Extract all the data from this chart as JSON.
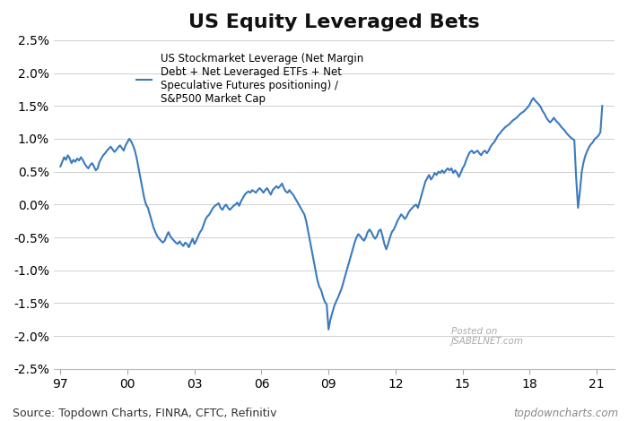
{
  "title": "US Equity Leveraged Bets",
  "legend_label": "US Stockmarket Leverage (Net Margin\nDebt + Net Leveraged ETFs + Net\nSpeculative Futures positioning) /\nS&P500 Market Cap",
  "line_color": "#3a7abf",
  "line_width": 1.5,
  "ylim": [
    -0.025,
    0.025
  ],
  "yticks": [
    -0.025,
    -0.02,
    -0.015,
    -0.01,
    -0.005,
    0.0,
    0.005,
    0.01,
    0.015,
    0.02,
    0.025
  ],
  "xtick_positions": [
    1997,
    2000,
    2003,
    2006,
    2009,
    2012,
    2015,
    2018,
    2021
  ],
  "xtick_labels": [
    "97",
    "00",
    "03",
    "06",
    "09",
    "12",
    "15",
    "18",
    "21"
  ],
  "source_text": "Source: Topdown Charts, FINRA, CFTC, Refinitiv",
  "watermark_text": "topdowncharts.com",
  "posted_on_text": "Posted on\nJSABELNET.com",
  "background_color": "#ffffff",
  "grid_color": "#d0d0d0",
  "title_fontsize": 16,
  "tick_fontsize": 10,
  "source_fontsize": 9,
  "xlim": [
    1996.7,
    2021.8
  ],
  "series": {
    "dates": [
      1997.0,
      1997.083,
      1997.167,
      1997.25,
      1997.333,
      1997.417,
      1997.5,
      1997.583,
      1997.667,
      1997.75,
      1997.833,
      1997.917,
      1998.0,
      1998.083,
      1998.167,
      1998.25,
      1998.333,
      1998.417,
      1998.5,
      1998.583,
      1998.667,
      1998.75,
      1998.833,
      1998.917,
      1999.0,
      1999.083,
      1999.167,
      1999.25,
      1999.333,
      1999.417,
      1999.5,
      1999.583,
      1999.667,
      1999.75,
      1999.833,
      1999.917,
      2000.0,
      2000.083,
      2000.167,
      2000.25,
      2000.333,
      2000.417,
      2000.5,
      2000.583,
      2000.667,
      2000.75,
      2000.833,
      2000.917,
      2001.0,
      2001.083,
      2001.167,
      2001.25,
      2001.333,
      2001.417,
      2001.5,
      2001.583,
      2001.667,
      2001.75,
      2001.833,
      2001.917,
      2002.0,
      2002.083,
      2002.167,
      2002.25,
      2002.333,
      2002.417,
      2002.5,
      2002.583,
      2002.667,
      2002.75,
      2002.833,
      2002.917,
      2003.0,
      2003.083,
      2003.167,
      2003.25,
      2003.333,
      2003.417,
      2003.5,
      2003.583,
      2003.667,
      2003.75,
      2003.833,
      2003.917,
      2004.0,
      2004.083,
      2004.167,
      2004.25,
      2004.333,
      2004.417,
      2004.5,
      2004.583,
      2004.667,
      2004.75,
      2004.833,
      2004.917,
      2005.0,
      2005.083,
      2005.167,
      2005.25,
      2005.333,
      2005.417,
      2005.5,
      2005.583,
      2005.667,
      2005.75,
      2005.833,
      2005.917,
      2006.0,
      2006.083,
      2006.167,
      2006.25,
      2006.333,
      2006.417,
      2006.5,
      2006.583,
      2006.667,
      2006.75,
      2006.833,
      2006.917,
      2007.0,
      2007.083,
      2007.167,
      2007.25,
      2007.333,
      2007.417,
      2007.5,
      2007.583,
      2007.667,
      2007.75,
      2007.833,
      2007.917,
      2008.0,
      2008.083,
      2008.167,
      2008.25,
      2008.333,
      2008.417,
      2008.5,
      2008.583,
      2008.667,
      2008.75,
      2008.833,
      2008.917,
      2009.0,
      2009.083,
      2009.167,
      2009.25,
      2009.333,
      2009.417,
      2009.5,
      2009.583,
      2009.667,
      2009.75,
      2009.833,
      2009.917,
      2010.0,
      2010.083,
      2010.167,
      2010.25,
      2010.333,
      2010.417,
      2010.5,
      2010.583,
      2010.667,
      2010.75,
      2010.833,
      2010.917,
      2011.0,
      2011.083,
      2011.167,
      2011.25,
      2011.333,
      2011.417,
      2011.5,
      2011.583,
      2011.667,
      2011.75,
      2011.833,
      2011.917,
      2012.0,
      2012.083,
      2012.167,
      2012.25,
      2012.333,
      2012.417,
      2012.5,
      2012.583,
      2012.667,
      2012.75,
      2012.833,
      2012.917,
      2013.0,
      2013.083,
      2013.167,
      2013.25,
      2013.333,
      2013.417,
      2013.5,
      2013.583,
      2013.667,
      2013.75,
      2013.833,
      2013.917,
      2014.0,
      2014.083,
      2014.167,
      2014.25,
      2014.333,
      2014.417,
      2014.5,
      2014.583,
      2014.667,
      2014.75,
      2014.833,
      2014.917,
      2015.0,
      2015.083,
      2015.167,
      2015.25,
      2015.333,
      2015.417,
      2015.5,
      2015.583,
      2015.667,
      2015.75,
      2015.833,
      2015.917,
      2016.0,
      2016.083,
      2016.167,
      2016.25,
      2016.333,
      2016.417,
      2016.5,
      2016.583,
      2016.667,
      2016.75,
      2016.833,
      2016.917,
      2017.0,
      2017.083,
      2017.167,
      2017.25,
      2017.333,
      2017.417,
      2017.5,
      2017.583,
      2017.667,
      2017.75,
      2017.833,
      2017.917,
      2018.0,
      2018.083,
      2018.167,
      2018.25,
      2018.333,
      2018.417,
      2018.5,
      2018.583,
      2018.667,
      2018.75,
      2018.833,
      2018.917,
      2019.0,
      2019.083,
      2019.167,
      2019.25,
      2019.333,
      2019.417,
      2019.5,
      2019.583,
      2019.667,
      2019.75,
      2019.833,
      2019.917,
      2020.0,
      2020.083,
      2020.167,
      2020.25,
      2020.333,
      2020.417,
      2020.5,
      2020.583,
      2020.667,
      2020.75,
      2020.833,
      2020.917,
      2021.0,
      2021.083,
      2021.167,
      2021.25
    ],
    "values": [
      0.0058,
      0.0065,
      0.0072,
      0.0068,
      0.0075,
      0.007,
      0.0063,
      0.0068,
      0.0065,
      0.007,
      0.0067,
      0.0072,
      0.0068,
      0.0062,
      0.0058,
      0.0055,
      0.006,
      0.0063,
      0.0058,
      0.0052,
      0.0055,
      0.0065,
      0.007,
      0.0075,
      0.0078,
      0.0082,
      0.0085,
      0.0088,
      0.0084,
      0.008,
      0.0083,
      0.0087,
      0.009,
      0.0086,
      0.0082,
      0.009,
      0.0095,
      0.01,
      0.0096,
      0.009,
      0.0082,
      0.007,
      0.0055,
      0.004,
      0.0025,
      0.001,
      0.0,
      -0.0005,
      -0.0015,
      -0.0025,
      -0.0035,
      -0.0042,
      -0.0048,
      -0.0052,
      -0.0055,
      -0.0058,
      -0.0055,
      -0.0048,
      -0.0042,
      -0.0048,
      -0.0052,
      -0.0055,
      -0.0058,
      -0.006,
      -0.0056,
      -0.006,
      -0.0063,
      -0.0058,
      -0.006,
      -0.0065,
      -0.0058,
      -0.0052,
      -0.006,
      -0.0055,
      -0.0048,
      -0.0042,
      -0.0038,
      -0.003,
      -0.0022,
      -0.0018,
      -0.0015,
      -0.001,
      -0.0005,
      -0.0002,
      -0.0,
      0.0002,
      -0.0005,
      -0.0008,
      -0.0003,
      0.0,
      -0.0005,
      -0.0008,
      -0.0005,
      -0.0002,
      0.0,
      0.0003,
      -0.0002,
      0.0005,
      0.001,
      0.0015,
      0.0018,
      0.002,
      0.0018,
      0.0022,
      0.002,
      0.0018,
      0.0022,
      0.0025,
      0.0022,
      0.0018,
      0.0022,
      0.0025,
      0.002,
      0.0015,
      0.0022,
      0.0025,
      0.0028,
      0.0025,
      0.0028,
      0.0032,
      0.0025,
      0.002,
      0.0018,
      0.0022,
      0.0018,
      0.0015,
      0.001,
      0.0005,
      0.0,
      -0.0005,
      -0.001,
      -0.0015,
      -0.0025,
      -0.004,
      -0.0055,
      -0.007,
      -0.0085,
      -0.01,
      -0.0115,
      -0.0125,
      -0.013,
      -0.014,
      -0.0148,
      -0.0152,
      -0.019,
      -0.0175,
      -0.0165,
      -0.0155,
      -0.0148,
      -0.0142,
      -0.0135,
      -0.0128,
      -0.0118,
      -0.0108,
      -0.0098,
      -0.0088,
      -0.0078,
      -0.0068,
      -0.0058,
      -0.005,
      -0.0045,
      -0.0048,
      -0.0052,
      -0.0055,
      -0.005,
      -0.0042,
      -0.0038,
      -0.0042,
      -0.0048,
      -0.0052,
      -0.0048,
      -0.004,
      -0.0038,
      -0.0048,
      -0.006,
      -0.0068,
      -0.006,
      -0.005,
      -0.0042,
      -0.0038,
      -0.0032,
      -0.0025,
      -0.002,
      -0.0015,
      -0.0018,
      -0.0022,
      -0.0018,
      -0.0012,
      -0.0008,
      -0.0005,
      -0.0002,
      0.0,
      -0.0005,
      0.0005,
      0.0015,
      0.0025,
      0.0035,
      0.004,
      0.0045,
      0.0038,
      0.0042,
      0.0048,
      0.0045,
      0.005,
      0.0048,
      0.0052,
      0.0048,
      0.0052,
      0.0055,
      0.0052,
      0.0055,
      0.0048,
      0.0052,
      0.0048,
      0.0042,
      0.0048,
      0.0055,
      0.006,
      0.0068,
      0.0075,
      0.008,
      0.0082,
      0.0078,
      0.008,
      0.0082,
      0.0078,
      0.0075,
      0.008,
      0.0082,
      0.0078,
      0.0082,
      0.0088,
      0.0092,
      0.0095,
      0.01,
      0.0105,
      0.0108,
      0.0112,
      0.0115,
      0.0118,
      0.012,
      0.0122,
      0.0125,
      0.0128,
      0.013,
      0.0132,
      0.0135,
      0.0138,
      0.014,
      0.0142,
      0.0145,
      0.0148,
      0.0152,
      0.0158,
      0.0162,
      0.0158,
      0.0155,
      0.0152,
      0.0148,
      0.0142,
      0.0138,
      0.0132,
      0.0128,
      0.0125,
      0.0128,
      0.0132,
      0.0128,
      0.0125,
      0.0122,
      0.0118,
      0.0115,
      0.0112,
      0.0108,
      0.0105,
      0.0102,
      0.01,
      0.0098,
      0.004,
      -0.0005,
      0.002,
      0.005,
      0.0065,
      0.0075,
      0.0082,
      0.0088,
      0.0092,
      0.0095,
      0.01,
      0.0102,
      0.0105,
      0.011,
      0.015
    ]
  }
}
